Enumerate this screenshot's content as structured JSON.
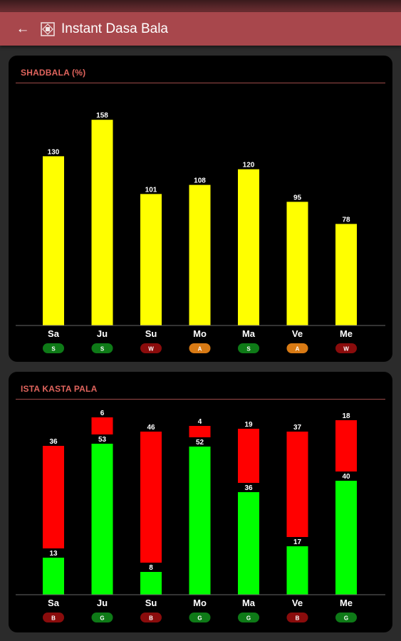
{
  "app": {
    "title": "Instant Dasa Bala"
  },
  "colors": {
    "appbar": "#a8474c",
    "bar_yellow": "#ffff00",
    "bar_red": "#ff0000",
    "bar_green": "#00ff00",
    "badge_green": "#0e7a17",
    "badge_red": "#8a0c0c",
    "badge_orange": "#d87a14"
  },
  "chart_data": [
    {
      "type": "bar",
      "title": "SHADBALA (%)",
      "categories": [
        "Sa",
        "Ju",
        "Su",
        "Mo",
        "Ma",
        "Ve",
        "Me"
      ],
      "values": [
        130,
        158,
        101,
        108,
        120,
        95,
        78
      ],
      "ylim": [
        0,
        180
      ],
      "badges": [
        "S",
        "S",
        "W",
        "A",
        "S",
        "A",
        "W"
      ],
      "badge_colors": [
        "green",
        "green",
        "red",
        "orange",
        "green",
        "orange",
        "red"
      ]
    },
    {
      "type": "bar",
      "stacked": true,
      "title": "ISTA KASTA PALA",
      "categories": [
        "Sa",
        "Ju",
        "Su",
        "Mo",
        "Ma",
        "Ve",
        "Me"
      ],
      "series": [
        {
          "values": [
            13,
            53,
            8,
            52,
            36,
            17,
            40
          ],
          "color": "green"
        },
        {
          "values": [
            36,
            6,
            46,
            4,
            19,
            37,
            18
          ],
          "color": "red"
        }
      ],
      "badges": [
        "B",
        "G",
        "B",
        "G",
        "G",
        "B",
        "G"
      ],
      "badge_colors": [
        "red",
        "green",
        "red",
        "green",
        "green",
        "red",
        "green"
      ]
    }
  ]
}
